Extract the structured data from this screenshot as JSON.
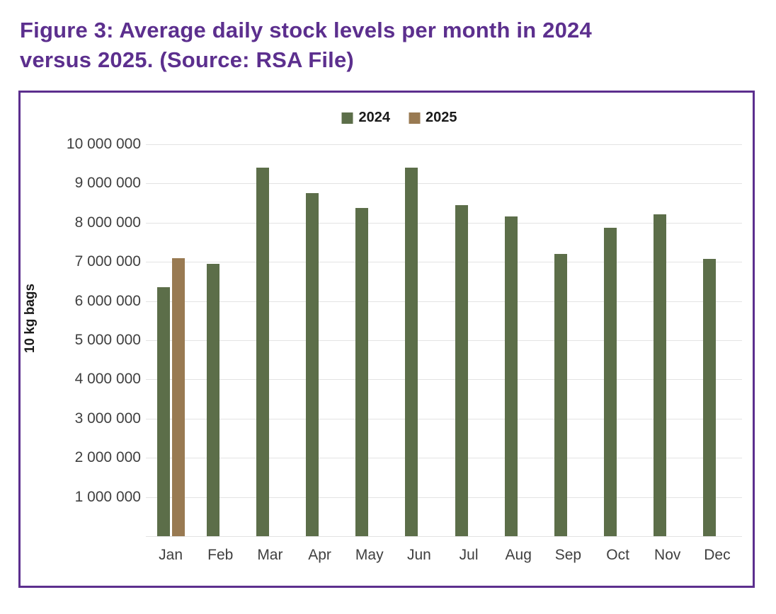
{
  "figure": {
    "title_line1": "Figure 3: Average daily stock levels per month in 2024",
    "title_line2": "versus 2025. (Source: RSA File)",
    "title_color": "#5c2f8e",
    "border_color": "#5c2f8e"
  },
  "chart_data": {
    "type": "bar",
    "categories": [
      "Jan",
      "Feb",
      "Mar",
      "Apr",
      "May",
      "Jun",
      "Jul",
      "Aug",
      "Sep",
      "Oct",
      "Nov",
      "Dec"
    ],
    "series": [
      {
        "name": "2024",
        "color": "#5c6e49",
        "values": [
          6350000,
          6950000,
          9400000,
          8750000,
          8380000,
          9400000,
          8450000,
          8150000,
          7200000,
          7870000,
          8220000,
          7080000
        ]
      },
      {
        "name": "2025",
        "color": "#997a52",
        "values": [
          7100000,
          null,
          null,
          null,
          null,
          null,
          null,
          null,
          null,
          null,
          null,
          null
        ]
      }
    ],
    "title": "",
    "xlabel": "",
    "ylabel": "10 kg bags",
    "ylim": [
      0,
      10000000
    ],
    "ytick_step": 1000000,
    "ytick_labels": [
      "1 000 000",
      "2 000 000",
      "3 000 000",
      "4 000 000",
      "5 000 000",
      "6 000 000",
      "7 000 000",
      "8 000 000",
      "9 000 000",
      "10 000 000"
    ],
    "grid": true,
    "legend_position": "top-center",
    "gridline_color": "#e3e3e3",
    "tick_text_color": "#3f3f3f"
  }
}
